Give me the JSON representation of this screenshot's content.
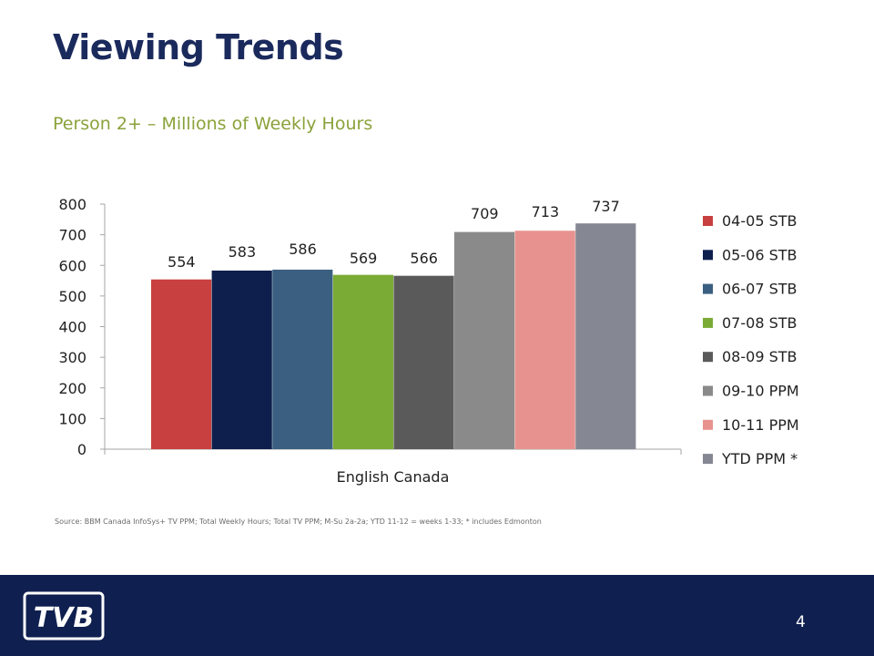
{
  "slide": {
    "title": "Viewing Trends",
    "subtitle": "Person 2+ – Millions of Weekly Hours",
    "source": "Source: BBM Canada InfoSys+ TV PPM; Total Weekly Hours; Total TV PPM; M-Su 2a-2a; YTD 11-12 = weeks 1-33; * includes Edmonton",
    "page_number": "4",
    "logo_text": "TVB"
  },
  "chart_data": {
    "type": "bar",
    "categories": [
      "English Canada"
    ],
    "series": [
      {
        "name": "04-05 STB",
        "values": [
          554
        ],
        "color": "#c94040"
      },
      {
        "name": "05-06 STB",
        "values": [
          583
        ],
        "color": "#0e1f4d"
      },
      {
        "name": "06-07 STB",
        "values": [
          586
        ],
        "color": "#3a5f80"
      },
      {
        "name": "07-08 STB",
        "values": [
          569
        ],
        "color": "#7aab35"
      },
      {
        "name": "08-09 STB",
        "values": [
          566
        ],
        "color": "#5a5a5a"
      },
      {
        "name": "09-10 PPM",
        "values": [
          709
        ],
        "color": "#8a8a8a"
      },
      {
        "name": "10-11 PPM",
        "values": [
          713
        ],
        "color": "#e8928f"
      },
      {
        "name": "YTD PPM *",
        "values": [
          737
        ],
        "color": "#858892"
      }
    ],
    "ylim": [
      0,
      800
    ],
    "yticks": [
      0,
      100,
      200,
      300,
      400,
      500,
      600,
      700,
      800
    ],
    "grid": false,
    "legend": "right",
    "data_labels": true
  }
}
